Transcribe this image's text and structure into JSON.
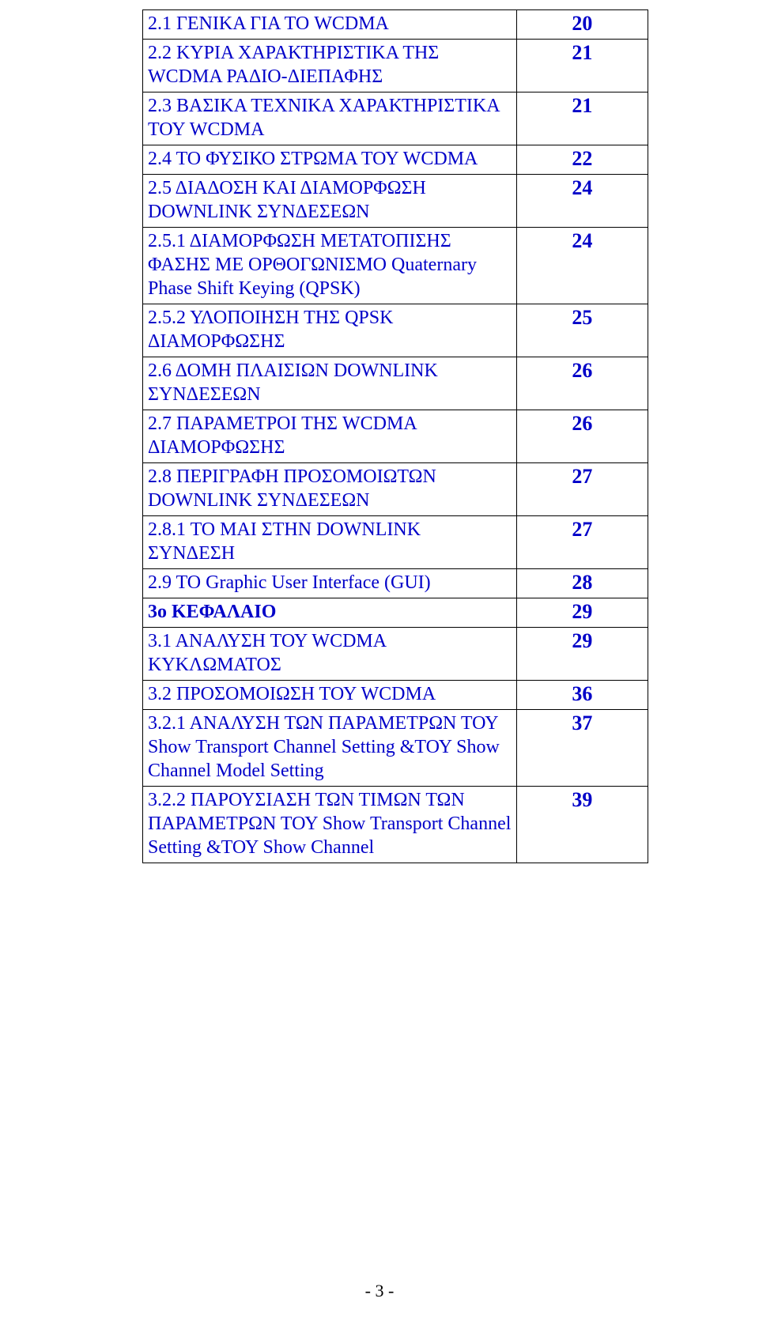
{
  "colors": {
    "link_blue": "#0000c8",
    "text_black": "#000000",
    "border": "#000000",
    "background": "#ffffff"
  },
  "typography": {
    "body_fontsize_pt": 18,
    "page_fontsize_pt": 20,
    "font_family": "Times New Roman"
  },
  "rows": [
    {
      "label": "2.1  ΓΕΝΙΚΑ ΓΙΑ ΤΟ WCDMA",
      "page": "20",
      "bold": false
    },
    {
      "label": "2.2  ΚΥΡΙΑ ΧΑΡΑΚΤΗΡΙΣΤΙΚΑ ΤΗΣ WCDMA ΡΑΔΙΟ-ΔΙΕΠΑΦΗΣ",
      "page": "21",
      "bold": false
    },
    {
      "label": "2.3  ΒΑΣΙΚΑ ΤΕΧΝΙΚΑ ΧΑΡΑΚΤΗΡΙΣΤΙΚΑ ΤΟΥ WCDMA",
      "page": "21",
      "bold": false
    },
    {
      "label": "2.4  ΤΟ ΦΥΣΙΚΟ ΣΤΡΩΜΑ ΤΟΥ WCDMA",
      "page": "22",
      "bold": false
    },
    {
      "label": "2.5  ΔΙΑΔΟΣΗ ΚΑΙ ΔΙΑΜΟΡΦΩΣΗ DOWNLINK ΣΥΝΔΕΣΕΩΝ",
      "page": "24",
      "bold": false
    },
    {
      "label": "2.5.1 ΔΙΑΜΟΡΦΩΣΗ ΜΕΤΑΤΟΠΙΣΗΣ ΦΑΣΗΣ ΜΕ ΟΡΘΟΓΩΝΙΣΜΟ Quaternary Phase Shift Keying (QPSK)",
      "page": "24",
      "bold": false
    },
    {
      "label": "2.5.2  ΥΛΟΠΟΙΗΣΗ ΤΗΣ QPSK ΔΙΑΜΟΡΦΩΣΗΣ",
      "page": "25",
      "bold": false
    },
    {
      "label": "2.6     ΔΟΜΗ ΠΛΑΙΣΙΩΝ DOWNLINK ΣΥΝΔΕΣΕΩΝ",
      "page": "26",
      "bold": false
    },
    {
      "label": "2.7      ΠΑΡΑΜΕΤΡΟΙ ΤΗΣ WCDMA ΔΙΑΜΟΡΦΩΣΗΣ",
      "page": "26",
      "bold": false
    },
    {
      "label": "2.8      ΠΕΡΙΓΡΑΦΗ ΠΡΟΣΟΜΟΙΩΤΩΝ DOWNLINK ΣΥΝΔΕΣΕΩΝ",
      "page": "27",
      "bold": false
    },
    {
      "label": "2.8.1   TO MAI ΣΤΗΝ DOWNLINK ΣΥΝΔΕΣΗ",
      "page": "27",
      "bold": false
    },
    {
      "label": "2.9 TO Graphic User Interface (GUI)",
      "page": "28",
      "bold": false
    },
    {
      "label": "3o ΚΕΦΑΛΑΙΟ",
      "page": "29",
      "bold": true
    },
    {
      "label": "3.1     ΑΝΑΛΥΣΗ ΤΟΥ WCDMA ΚΥΚΛΩΜΑΤΟΣ",
      "page": "29",
      "bold": false
    },
    {
      "label": "3.2     ΠΡΟΣΟΜΟΙΩΣΗ ΤΟΥ WCDMA",
      "page": "36",
      "bold": false
    },
    {
      "label": "3.2.1  ΑΝΑΛΥΣΗ ΤΩΝ ΠΑΡΑΜΕΤΡΩΝ ΤΟΥ  Show Transport Channel Setting &ΤΟΥ Show Channel Model Setting",
      "page": "37",
      "bold": false
    },
    {
      "label": "3.2.2  ΠΑΡΟΥΣΙΑΣΗ ΤΩΝ ΤΙΜΩΝ ΤΩΝ ΠΑΡΑΜΕΤΡΩΝ ΤΟΥ Show Transport Channel Setting &ΤΟΥ Show Channel",
      "page": "39",
      "bold": false
    }
  ],
  "footer": "- 3 -"
}
